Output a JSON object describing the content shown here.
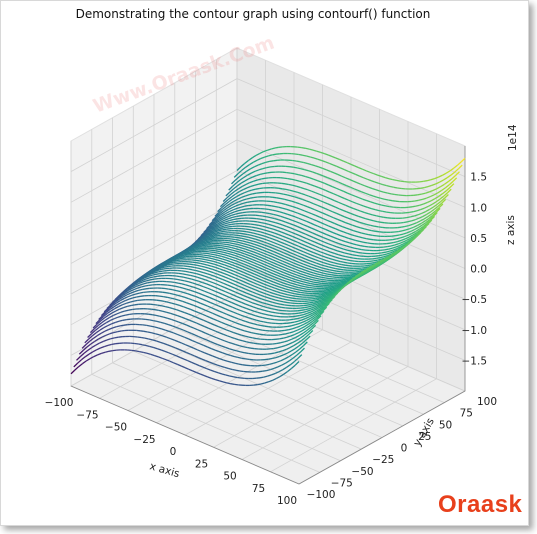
{
  "chart_data": {
    "type": "surface3d",
    "title": "Demonstrating the contour graph using contourf() function",
    "xlabel": "x axis",
    "ylabel": "y axis",
    "zlabel": "z axis",
    "z_offset_label": "1e14",
    "x_ticks": [
      "−100",
      "−75",
      "−50",
      "−25",
      "0",
      "25",
      "50",
      "75",
      "100"
    ],
    "y_ticks": [
      "−100",
      "−75",
      "−50",
      "−25",
      "0",
      "25",
      "50",
      "75",
      "100"
    ],
    "z_ticks": [
      "−1.5",
      "−1.0",
      "−0.5",
      "0.0",
      "0.5",
      "1.0",
      "1.5"
    ],
    "xlim": [
      -100,
      100
    ],
    "ylim": [
      -100,
      100
    ],
    "zlim": [
      -2.0,
      2.0
    ],
    "colormap": "viridis",
    "grid": true
  },
  "watermark": "Www.Oraask.Com",
  "logo": "Oraask"
}
